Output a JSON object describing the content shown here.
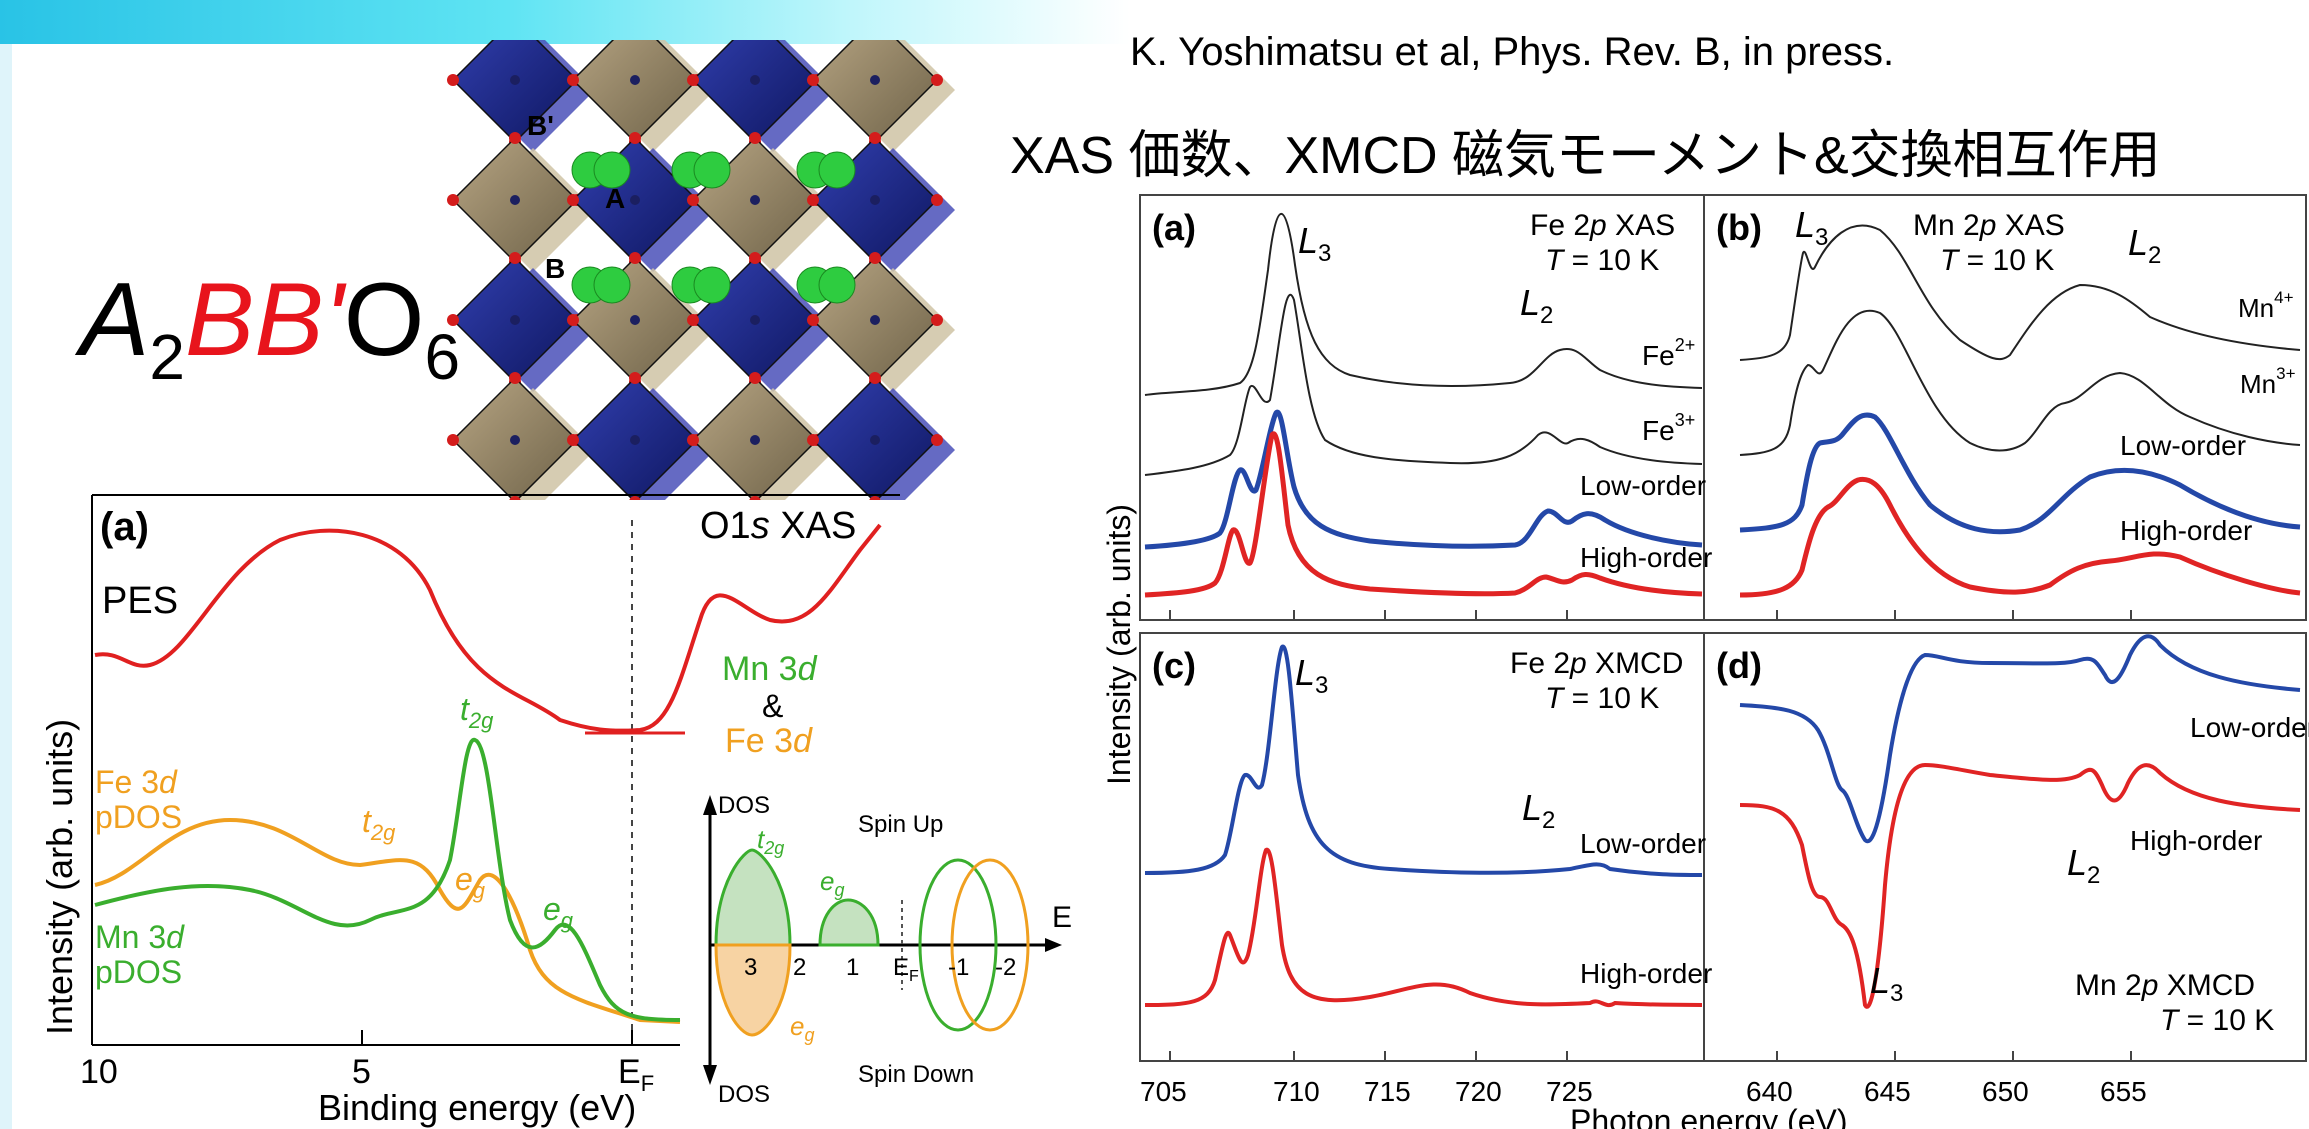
{
  "slide": {
    "citation": "K. Yoshimatsu et al, Phys. Rev. B, in press.",
    "heading": "XAS 価数、XMCD 磁気モーメント&交換相互作用",
    "formula": {
      "a": "A",
      "a_sub": "2",
      "bb": "BB",
      "prime": "'",
      "o": "O",
      "o_sub": "6"
    }
  },
  "structure": {
    "label_b_prime": "B'",
    "label_a": "A",
    "label_b": "B",
    "colors": {
      "b_octahedron": "#1e2a8c",
      "bprime_octahedron": "#9b8b6a",
      "a_ion": "#2ecc40",
      "oxygen": "#d41c1c"
    }
  },
  "pes_panel": {
    "panel_label": "(a)",
    "pes_label": "PES",
    "xas_label_pre": "O1",
    "xas_label_s": "s",
    "xas_label_post": " XAS",
    "ylabel": "Intensity (arb. units)",
    "xlabel": "Binding energy (eV)",
    "ticks": [
      "10",
      "5"
    ],
    "ef_tick": "E",
    "ef_sub": "F",
    "mn3d_label": "Mn 3",
    "mn3d_d": "d",
    "amp": "&",
    "fe3d_label": "Fe 3",
    "fe3d_d": "d",
    "fe_pdos_1": "Fe 3",
    "fe_pdos_d": "d",
    "fe_pdos_2": "pDOS",
    "mn_pdos_1": "Mn 3",
    "mn_pdos_d": "d",
    "mn_pdos_2": "pDOS",
    "t2g_t": "t",
    "t2g_sub": "2g",
    "eg_e": "e",
    "eg_sub": "g",
    "colors": {
      "pes": "#e02020",
      "fe": "#f0a020",
      "mn": "#3aae2e"
    }
  },
  "dos_inset": {
    "dos_top": "DOS",
    "dos_bottom": "DOS",
    "spin_up": "Spin Up",
    "spin_down": "Spin Down",
    "t2g_t": "t",
    "t2g_sub": "2g",
    "eg_e": "e",
    "eg_sub": "g",
    "e_axis": "E",
    "ticks": [
      "3",
      "2",
      "1",
      "E",
      "-1",
      "-2"
    ],
    "ef_sub": "F"
  },
  "xas_figure": {
    "ylabel": "Intensity (arb. units)",
    "xlabel": "Photon energy (eV)",
    "fe_ticks": [
      "705",
      "710",
      "715",
      "720",
      "725"
    ],
    "mn_ticks": [
      "640",
      "645",
      "650",
      "655"
    ],
    "panels": {
      "a": {
        "label": "(a)",
        "title_1": "Fe 2",
        "title_p": "p",
        "title_2": " XAS",
        "temp_t": "T",
        "temp_rest": " = 10 K",
        "l3": "L",
        "l3_sub": "3",
        "l2": "L",
        "l2_sub": "2",
        "fe2": "Fe",
        "fe2_sup": "2+",
        "fe3": "Fe",
        "fe3_sup": "3+",
        "low": "Low-order",
        "high": "High-order"
      },
      "b": {
        "label": "(b)",
        "title_1": "Mn 2",
        "title_p": "p",
        "title_2": " XAS",
        "temp_t": "T",
        "temp_rest": " = 10 K",
        "l3": "L",
        "l3_sub": "3",
        "l2": "L",
        "l2_sub": "2",
        "mn4": "Mn",
        "mn4_sup": "4+",
        "mn3": "Mn",
        "mn3_sup": "3+",
        "low": "Low-order",
        "high": "High-order"
      },
      "c": {
        "label": "(c)",
        "title_1": "Fe 2",
        "title_p": "p",
        "title_2": " XMCD",
        "temp_t": "T",
        "temp_rest": " = 10 K",
        "l3": "L",
        "l3_sub": "3",
        "l2": "L",
        "l2_sub": "2",
        "low": "Low-order",
        "high": "High-order"
      },
      "d": {
        "label": "(d)",
        "title_1": "Mn 2",
        "title_p": "p",
        "title_2": " XMCD",
        "temp_t": "T",
        "temp_rest": " = 10 K",
        "l3": "L",
        "l3_sub": "3",
        "l2": "L",
        "l2_sub": "2",
        "low": "Low-order",
        "high": "High-order"
      }
    },
    "colors": {
      "low": "#2448a8",
      "high": "#e02424",
      "ref": "#222222"
    }
  }
}
